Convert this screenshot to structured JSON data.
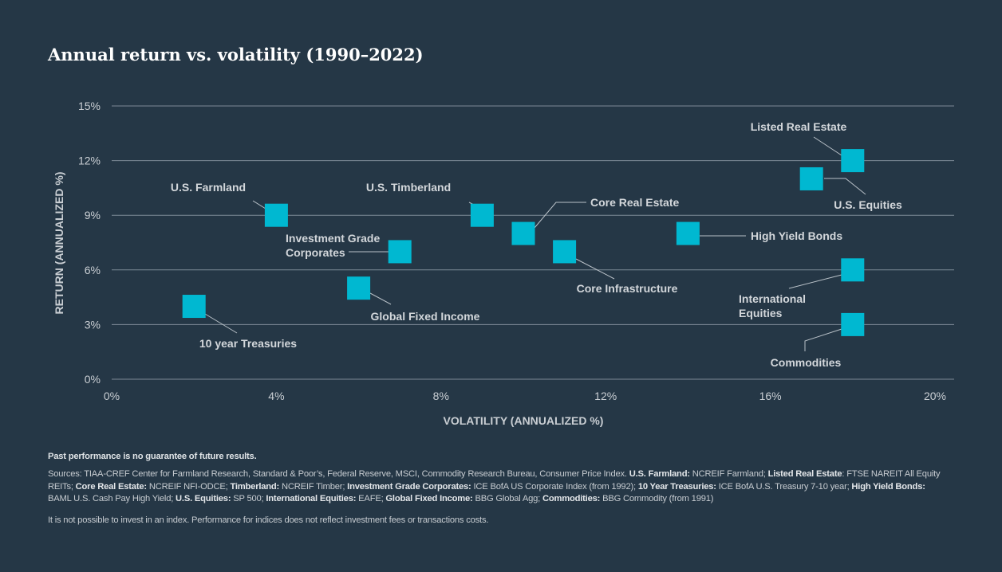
{
  "title": "Annual return vs. volatility (1990–2022)",
  "chart_data": {
    "type": "scatter",
    "title": "Annual return vs. volatility (1990–2022)",
    "xlabel": "VOLATILITY (ANNUALIZED %)",
    "ylabel": "RETURN (ANNUALIZED %)",
    "xlim": [
      0,
      20
    ],
    "ylim": [
      0,
      15
    ],
    "xticks": [
      "0%",
      "4%",
      "8%",
      "12%",
      "16%",
      "20%"
    ],
    "yticks": [
      "0%",
      "3%",
      "6%",
      "9%",
      "12%",
      "15%"
    ],
    "grid": "horizontal",
    "marker_color": "#00b8d1",
    "points": [
      {
        "label": "Listed Real Estate",
        "x": 18,
        "y": 12
      },
      {
        "label": "U.S. Equities",
        "x": 17,
        "y": 11
      },
      {
        "label": "U.S. Farmland",
        "x": 4,
        "y": 9
      },
      {
        "label": "U.S. Timberland",
        "x": 9,
        "y": 9
      },
      {
        "label": "Core Real Estate",
        "x": 10,
        "y": 8
      },
      {
        "label": "Investment Grade Corporates",
        "lines": [
          "Investment Grade",
          "Corporates"
        ],
        "x": 7,
        "y": 7
      },
      {
        "label": "High Yield Bonds",
        "x": 14,
        "y": 8
      },
      {
        "label": "Core Infrastructure",
        "x": 11,
        "y": 7
      },
      {
        "label": "Global Fixed Income",
        "x": 6,
        "y": 5
      },
      {
        "label": "10 year Treasuries",
        "x": 2,
        "y": 4
      },
      {
        "label": "International Equities",
        "lines": [
          "International",
          "Equities"
        ],
        "x": 18,
        "y": 6
      },
      {
        "label": "Commodities",
        "x": 18,
        "y": 3
      }
    ]
  },
  "footnotes": {
    "disclaimer": "Past performance is no guarantee of future results.",
    "sources": [
      {
        "b": false,
        "t": "Sources: TIAA-CREF Center for Farmland Research, Standard & Poor’s, Federal Reserve, MSCI, Commodity Research Bureau, Consumer Price Index. "
      },
      {
        "b": true,
        "t": "U.S. Farmland:"
      },
      {
        "b": false,
        "t": " NCREIF Farmland; "
      },
      {
        "b": true,
        "t": "Listed Real Estate"
      },
      {
        "b": false,
        "t": ": FTSE NAREIT All Equity REITs; "
      },
      {
        "b": true,
        "t": "Core Real Estate:"
      },
      {
        "b": false,
        "t": " NCREIF NFI-ODCE; "
      },
      {
        "b": true,
        "t": "Timberland:"
      },
      {
        "b": false,
        "t": " NCREIF Timber; "
      },
      {
        "b": true,
        "t": "Investment Grade Corporates:"
      },
      {
        "b": false,
        "t": " ICE BofA US Corporate Index (from 1992); "
      },
      {
        "b": true,
        "t": "10 Year Treasuries:"
      },
      {
        "b": false,
        "t": " ICE BofA U.S. Treasury 7-10 year; "
      },
      {
        "b": true,
        "t": "High Yield Bonds:"
      },
      {
        "b": false,
        "t": " BAML U.S. Cash Pay High Yield; "
      },
      {
        "b": true,
        "t": "U.S. Equities:"
      },
      {
        "b": false,
        "t": " SP 500; "
      },
      {
        "b": true,
        "t": "International Equities:"
      },
      {
        "b": false,
        "t": " EAFE; "
      },
      {
        "b": true,
        "t": "Global Fixed Income:"
      },
      {
        "b": false,
        "t": " BBG Global Agg; "
      },
      {
        "b": true,
        "t": "Commodities:"
      },
      {
        "b": false,
        "t": " BBG Commodity (from 1991)"
      }
    ],
    "index_note": "It is not possible to invest in an index. Performance for indices does not reflect investment fees or transactions costs."
  }
}
